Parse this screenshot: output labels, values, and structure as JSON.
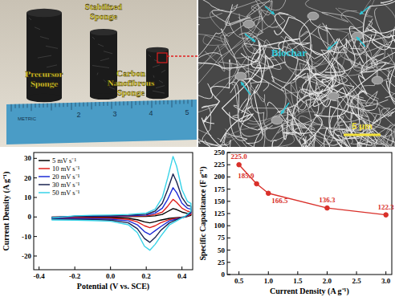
{
  "chart_data": [
    {
      "type": "line",
      "x_label": "Potential (V vs. SCE)",
      "y_label": "Current Density (A g⁻¹)",
      "x": [
        -0.33,
        -0.2,
        -0.1,
        0.0,
        0.1,
        0.2,
        0.25,
        0.29,
        0.32,
        0.35,
        0.37,
        0.4,
        0.43,
        0.45,
        0.45,
        0.42,
        0.38,
        0.33,
        0.28,
        0.25,
        0.22,
        0.19,
        0.15,
        0.1,
        0.0,
        -0.1,
        -0.2,
        -0.33
      ],
      "series": [
        {
          "name": "5 mV s⁻¹",
          "color": "#000000",
          "values": [
            -0.1,
            0.1,
            0.15,
            0.15,
            0.2,
            0.3,
            0.6,
            1.3,
            2.8,
            4.3,
            3.8,
            2.5,
            1.8,
            1.5,
            0.8,
            0,
            -0.3,
            -0.7,
            -1.6,
            -2.4,
            -3,
            -2.5,
            -1.4,
            -0.7,
            -0.4,
            -0.3,
            -0.3,
            -0.3
          ]
        },
        {
          "name": "10 mV s⁻¹",
          "color": "#e0201b",
          "values": [
            -0.2,
            0.2,
            0.3,
            0.3,
            0.4,
            0.6,
            1.2,
            2.5,
            5.5,
            9,
            7.5,
            4.5,
            3,
            2.5,
            1.3,
            0.1,
            -0.5,
            -1.3,
            -3,
            -4.5,
            -5.5,
            -4.5,
            -2.5,
            -1.2,
            -0.7,
            -0.6,
            -0.5,
            -0.5
          ]
        },
        {
          "name": "20 mV s⁻¹",
          "color": "#1d2bd6",
          "values": [
            -0.3,
            0.3,
            0.4,
            0.5,
            0.6,
            1,
            2,
            4.5,
            9,
            15,
            12.5,
            7,
            4.5,
            4,
            2,
            0.2,
            -0.8,
            -2,
            -5,
            -7,
            -9,
            -7.5,
            -4,
            -2,
            -1.1,
            -0.9,
            -0.8,
            -0.8
          ]
        },
        {
          "name": "30 mV s⁻¹",
          "color": "#1a2350",
          "values": [
            -0.4,
            0.4,
            0.6,
            0.7,
            0.9,
            1.4,
            3,
            7,
            14,
            22,
            18,
            10,
            6,
            5.5,
            2.5,
            0.3,
            -1,
            -3,
            -7,
            -10.5,
            -13,
            -11,
            -6,
            -3,
            -1.6,
            -1.3,
            -1.2,
            -1.1
          ]
        },
        {
          "name": "50 mV s⁻¹",
          "color": "#38d3e8",
          "values": [
            -0.5,
            0.6,
            0.9,
            1.0,
            1.3,
            2.0,
            4.0,
            10,
            20,
            31,
            26,
            14,
            8,
            7,
            3,
            0.5,
            -1.5,
            -4,
            -10,
            -14,
            -17,
            -15,
            -8,
            -4,
            -2.2,
            -1.8,
            -1.6,
            -1.5
          ]
        }
      ],
      "xlim": [
        -0.43,
        0.46
      ],
      "ylim": [
        -27,
        33
      ],
      "xticks": [
        -0.4,
        -0.2,
        {
          "value": 0,
          "label": "0.0"
        },
        0.2,
        0.4
      ],
      "yticks": [
        -20,
        -10,
        0,
        10,
        20,
        30
      ],
      "legend": "upper left"
    },
    {
      "type": "line",
      "x_label": "Current Density (A g⁻¹)",
      "y_label": "Specific Capacitance (F g⁻¹)",
      "x": [
        0.5,
        0.8,
        1.0,
        2.0,
        3.0
      ],
      "values": [
        225,
        185.9,
        166.5,
        136.3,
        122.3
      ],
      "value_labels": [
        "225.0",
        "185.9",
        "166.5",
        "136.3",
        "122.3"
      ],
      "data_labels": true,
      "color": "#d9302a",
      "marker": "circle",
      "line_style": "solid",
      "xlim": [
        0.3,
        3.1
      ],
      "ylim": [
        0,
        250
      ],
      "xticks": [
        0.5,
        {
          "value": 1,
          "label": "1.0"
        },
        1.5,
        {
          "value": 2,
          "label": "2.0"
        },
        2.5,
        {
          "value": 3,
          "label": "3.0"
        }
      ],
      "yticks": [
        0,
        25,
        50,
        75,
        100,
        125,
        150,
        175,
        200,
        225,
        250
      ]
    }
  ],
  "photo": {
    "labels": [
      {
        "lines": [
          "Precursor",
          "Sponge"
        ]
      },
      {
        "lines": [
          "Stabilized",
          "Sponge"
        ]
      },
      {
        "lines": [
          "Carbon",
          "Nanofibrous",
          "Sponge"
        ]
      }
    ],
    "ruler": {
      "label": "METRIC",
      "numbers": [
        "2",
        "3",
        "4",
        "5"
      ]
    }
  },
  "sem": {
    "label": "Biochar",
    "scale_bar": "5 μm"
  }
}
